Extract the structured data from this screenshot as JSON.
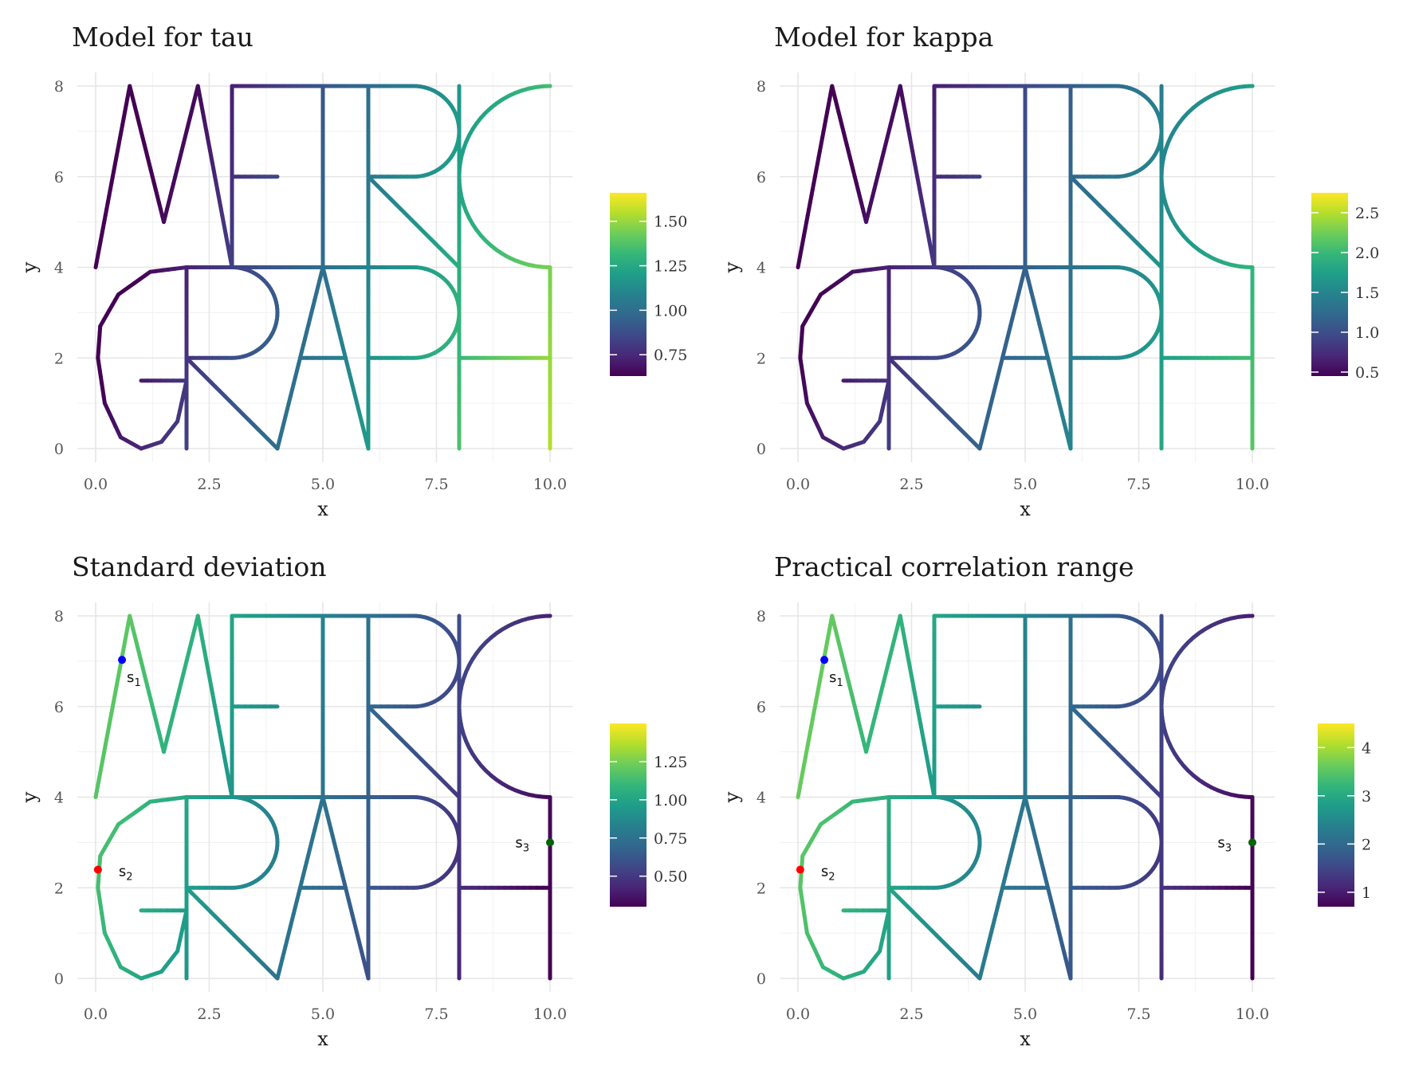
{
  "chart_data": [
    {
      "type": "line",
      "title": "Model for tau",
      "xlabel": "x",
      "ylabel": "y",
      "xlim": [
        0,
        10
      ],
      "ylim": [
        0,
        8
      ],
      "x_ticks": [
        "0.0",
        "2.5",
        "5.0",
        "7.5",
        "10.0"
      ],
      "y_ticks": [
        "0",
        "2",
        "4",
        "6",
        "8"
      ],
      "colorbar": {
        "min": 0.63,
        "max": 1.66,
        "ticks": [
          "0.75",
          "1.00",
          "1.25",
          "1.50"
        ],
        "tick_values": [
          0.75,
          1.0,
          1.25,
          1.5
        ]
      },
      "field": {
        "base": 0.65,
        "gx": 0.09,
        "gy": -0.025
      },
      "points": []
    },
    {
      "type": "line",
      "title": "Model for kappa",
      "xlabel": "x",
      "ylabel": "y",
      "xlim": [
        0,
        10
      ],
      "ylim": [
        0,
        8
      ],
      "x_ticks": [
        "0.0",
        "2.5",
        "5.0",
        "7.5",
        "10.0"
      ],
      "y_ticks": [
        "0",
        "2",
        "4",
        "6",
        "8"
      ],
      "colorbar": {
        "min": 0.45,
        "max": 2.75,
        "ticks": [
          "0.5",
          "1.0",
          "1.5",
          "2.0",
          "2.5"
        ],
        "tick_values": [
          0.5,
          1.0,
          1.5,
          2.0,
          2.5
        ]
      },
      "field": {
        "base": 0.55,
        "gx": 0.16,
        "gy": -0.05
      },
      "points": []
    },
    {
      "type": "line",
      "title": "Standard deviation",
      "xlabel": "x",
      "ylabel": "y",
      "xlim": [
        0,
        10
      ],
      "ylim": [
        0,
        8
      ],
      "x_ticks": [
        "0.0",
        "2.5",
        "5.0",
        "7.5",
        "10.0"
      ],
      "y_ticks": [
        "0",
        "2",
        "4",
        "6",
        "8"
      ],
      "colorbar": {
        "min": 0.3,
        "max": 1.5,
        "ticks": [
          "0.50",
          "0.75",
          "1.00",
          "1.25"
        ],
        "tick_values": [
          0.5,
          0.75,
          1.0,
          1.25
        ]
      },
      "field": {
        "base": 1.1,
        "gx": -0.085,
        "gy": 0.02
      },
      "points": [
        {
          "label": "s",
          "sub": "1",
          "x": 0.58,
          "y": 7.03,
          "color": "#0000ff",
          "label_side": "right-below"
        },
        {
          "label": "s",
          "sub": "2",
          "x": 0.05,
          "y": 2.4,
          "color": "#ff0000",
          "label_side": "right"
        },
        {
          "label": "s",
          "sub": "3",
          "x": 10.0,
          "y": 3.0,
          "color": "#006400",
          "label_side": "left"
        }
      ]
    },
    {
      "type": "line",
      "title": "Practical correlation range",
      "xlabel": "x",
      "ylabel": "y",
      "xlim": [
        0,
        10
      ],
      "ylim": [
        0,
        8
      ],
      "x_ticks": [
        "0.0",
        "2.5",
        "5.0",
        "7.5",
        "10.0"
      ],
      "y_ticks": [
        "0",
        "2",
        "4",
        "6",
        "8"
      ],
      "colorbar": {
        "min": 0.7,
        "max": 4.5,
        "ticks": [
          "1",
          "2",
          "3",
          "4"
        ],
        "tick_values": [
          1,
          2,
          3,
          4
        ]
      },
      "field": {
        "base": 3.4,
        "gx": -0.28,
        "gy": 0.05
      },
      "points": [
        {
          "label": "s",
          "sub": "1",
          "x": 0.58,
          "y": 7.03,
          "color": "#0000ff",
          "label_side": "right-below"
        },
        {
          "label": "s",
          "sub": "2",
          "x": 0.05,
          "y": 2.4,
          "color": "#ff0000",
          "label_side": "right"
        },
        {
          "label": "s",
          "sub": "3",
          "x": 10.0,
          "y": 3.0,
          "color": "#006400",
          "label_side": "left"
        }
      ]
    }
  ],
  "network": {
    "lines": [
      [
        [
          0,
          4
        ],
        [
          0.75,
          8
        ],
        [
          1.5,
          5
        ],
        [
          2.25,
          8
        ],
        [
          3,
          4
        ]
      ],
      [
        [
          3,
          4
        ],
        [
          3,
          8
        ]
      ],
      [
        [
          3,
          8
        ],
        [
          6,
          8
        ]
      ],
      [
        [
          3,
          6
        ],
        [
          4,
          6
        ]
      ],
      [
        [
          3,
          4
        ],
        [
          6,
          4
        ]
      ],
      [
        [
          5,
          4
        ],
        [
          5,
          8
        ]
      ],
      [
        [
          6,
          0
        ],
        [
          6,
          8
        ]
      ],
      [
        [
          6,
          8
        ],
        [
          7,
          8
        ]
      ],
      [
        [
          6,
          6
        ],
        [
          7,
          6
        ]
      ],
      [
        [
          6,
          6
        ],
        [
          8,
          4
        ]
      ],
      [
        [
          8,
          0
        ],
        [
          8,
          8
        ]
      ],
      [
        [
          10,
          8
        ],
        [
          10,
          8
        ]
      ],
      [
        [
          10,
          0
        ],
        [
          10,
          4
        ]
      ],
      [
        [
          8,
          2
        ],
        [
          10,
          2
        ]
      ],
      [
        [
          6,
          4
        ],
        [
          7,
          4
        ]
      ],
      [
        [
          6,
          2
        ],
        [
          7,
          2
        ]
      ],
      [
        [
          2,
          0
        ],
        [
          2,
          4
        ]
      ],
      [
        [
          2,
          4
        ],
        [
          3,
          4
        ]
      ],
      [
        [
          2,
          2
        ],
        [
          3,
          2
        ]
      ],
      [
        [
          2,
          2
        ],
        [
          4,
          0
        ]
      ],
      [
        [
          4,
          0
        ],
        [
          5,
          4
        ]
      ],
      [
        [
          5,
          4
        ],
        [
          6,
          0
        ]
      ],
      [
        [
          4.5,
          2
        ],
        [
          5.5,
          2
        ]
      ],
      [
        [
          1,
          1.5
        ],
        [
          2,
          1.5
        ]
      ]
    ],
    "arcs": [
      {
        "cx": 7,
        "cy": 7,
        "r": 1,
        "a0": 90,
        "a1": -90
      },
      {
        "cx": 7,
        "cy": 3,
        "r": 1,
        "a0": 90,
        "a1": -90
      },
      {
        "cx": 3,
        "cy": 3,
        "r": 1,
        "a0": 90,
        "a1": -90
      },
      {
        "cx": 10,
        "cy": 6,
        "r": 2,
        "a0": 90,
        "a1": 270
      }
    ],
    "g_curve": [
      [
        2,
        4
      ],
      [
        1.2,
        3.9
      ],
      [
        0.5,
        3.4
      ],
      [
        0.1,
        2.7
      ],
      [
        0.05,
        2.0
      ],
      [
        0.2,
        1.0
      ],
      [
        0.55,
        0.25
      ],
      [
        1.0,
        0.0
      ],
      [
        1.45,
        0.15
      ],
      [
        1.8,
        0.6
      ],
      [
        2,
        1.5
      ]
    ]
  },
  "colors": {
    "viridis": [
      "#440154",
      "#482878",
      "#3e4a89",
      "#31688e",
      "#26828e",
      "#1f9e89",
      "#35b779",
      "#6dcd59",
      "#b4de2c",
      "#fde725"
    ]
  }
}
